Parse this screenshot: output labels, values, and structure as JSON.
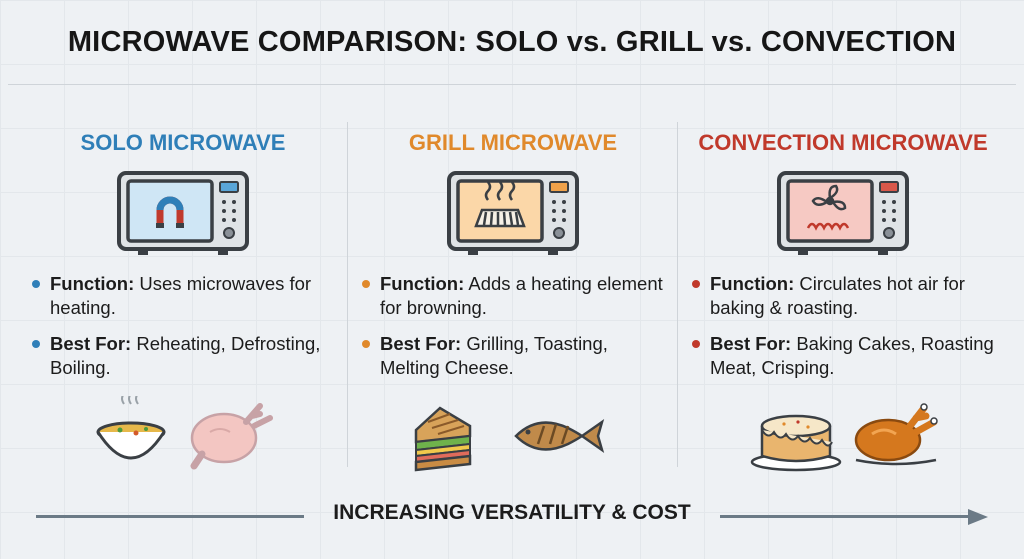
{
  "title": "MICROWAVE COMPARISON: SOLO vs. GRILL vs. CONVECTION",
  "columns": [
    {
      "title": "SOLO MICROWAVE",
      "color": "#2f7fb8",
      "icon": "magnet-icon",
      "function_label": "Function:",
      "function_text": " Uses microwaves for heating.",
      "best_label": "Best For:",
      "best_text": " Reheating, Defrosting, Boiling.",
      "foods": [
        "soup-bowl-icon",
        "raw-chicken-icon"
      ]
    },
    {
      "title": "GRILL MICROWAVE",
      "color": "#e0892b",
      "icon": "grill-heat-icon",
      "function_label": "Function:",
      "function_text": " Adds a heating element for browning.",
      "best_label": "Best For:",
      "best_text": " Grilling, Toasting, Melting Cheese.",
      "foods": [
        "sandwich-icon",
        "grilled-fish-icon"
      ]
    },
    {
      "title": "CONVECTION MICROWAVE",
      "color": "#c0392b",
      "icon": "fan-icon",
      "function_label": "Function:",
      "function_text": " Circulates hot air for baking & roasting.",
      "best_label": "Best For:",
      "best_text": " Baking Cakes, Roasting Meat, Crisping.",
      "foods": [
        "cake-icon",
        "roast-chicken-icon"
      ]
    }
  ],
  "footer": "INCREASING VERSATILITY & COST"
}
